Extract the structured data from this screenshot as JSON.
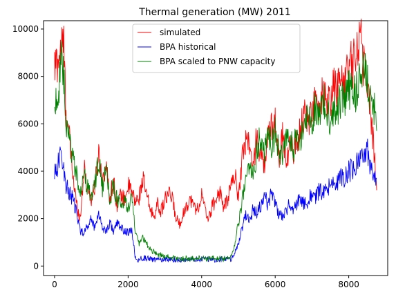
{
  "chart_data": {
    "type": "line",
    "title": "Thermal generation (MW) 2011",
    "xlabel": "",
    "ylabel": "",
    "xlim": [
      -300,
      9060
    ],
    "ylim": [
      -400,
      10350
    ],
    "x_ticks": [
      0,
      2000,
      4000,
      6000,
      8000
    ],
    "y_ticks": [
      0,
      2000,
      4000,
      6000,
      8000,
      10000
    ],
    "grid": false,
    "legend_position": "top-center",
    "series": [
      {
        "name": "simulated",
        "color": "#ff0000",
        "x": [
          0,
          100,
          200,
          250,
          300,
          400,
          500,
          600,
          700,
          800,
          900,
          1000,
          1100,
          1200,
          1300,
          1400,
          1500,
          1600,
          1700,
          1800,
          1900,
          2000,
          2100,
          2200,
          2300,
          2400,
          2500,
          2600,
          2700,
          2800,
          2900,
          3000,
          3100,
          3200,
          3300,
          3400,
          3500,
          3600,
          3700,
          3800,
          3900,
          4000,
          4100,
          4200,
          4300,
          4400,
          4500,
          4600,
          4700,
          4800,
          4900,
          5000,
          5100,
          5200,
          5300,
          5400,
          5500,
          5600,
          5700,
          5800,
          5900,
          6000,
          6100,
          6200,
          6300,
          6400,
          6500,
          6600,
          6700,
          6800,
          6900,
          7000,
          7100,
          7200,
          7300,
          7400,
          7500,
          7600,
          7700,
          7800,
          7900,
          8000,
          8100,
          8200,
          8300,
          8350,
          8400,
          8500,
          8600,
          8700,
          8760
        ],
        "y": [
          8300,
          8800,
          9200,
          9400,
          6900,
          5400,
          3800,
          2600,
          2000,
          4100,
          3300,
          2800,
          3400,
          4800,
          3600,
          4300,
          2900,
          3600,
          2600,
          3000,
          2800,
          3400,
          3100,
          2700,
          2900,
          3700,
          3000,
          2400,
          2100,
          2600,
          2300,
          2800,
          3000,
          2900,
          2000,
          1800,
          2200,
          2600,
          2800,
          2500,
          2400,
          3000,
          2300,
          2000,
          2600,
          2800,
          3200,
          2400,
          2800,
          3400,
          3900,
          2900,
          4500,
          5400,
          5200,
          4000,
          5600,
          4600,
          4300,
          5300,
          5900,
          6100,
          4600,
          5500,
          4500,
          5100,
          4900,
          5300,
          5800,
          6600,
          6100,
          6400,
          7000,
          6300,
          7400,
          6700,
          6900,
          7700,
          7400,
          8100,
          7800,
          8700,
          8400,
          9100,
          9800,
          9700,
          8600,
          7800,
          6500,
          4600,
          3200
        ]
      },
      {
        "name": "BPA historical",
        "color": "#0000ff",
        "x": [
          0,
          100,
          200,
          300,
          400,
          500,
          600,
          700,
          800,
          900,
          1000,
          1100,
          1200,
          1300,
          1400,
          1500,
          1600,
          1700,
          1800,
          1900,
          2000,
          2100,
          2200,
          2300,
          2400,
          2600,
          2800,
          3000,
          3200,
          3400,
          3600,
          3800,
          4000,
          4200,
          4400,
          4600,
          4800,
          5000,
          5100,
          5200,
          5300,
          5400,
          5500,
          5600,
          5700,
          5800,
          5900,
          6000,
          6100,
          6200,
          6300,
          6400,
          6500,
          6600,
          6700,
          6800,
          6900,
          7000,
          7100,
          7200,
          7300,
          7400,
          7500,
          7600,
          7700,
          7800,
          7900,
          8000,
          8100,
          8200,
          8300,
          8400,
          8500,
          8600,
          8700,
          8760
        ],
        "y": [
          4000,
          4300,
          4800,
          3400,
          3100,
          2800,
          2200,
          1500,
          1400,
          1700,
          2000,
          1600,
          2300,
          1600,
          1500,
          1800,
          1500,
          1800,
          1600,
          1500,
          1400,
          1500,
          300,
          250,
          350,
          300,
          250,
          300,
          280,
          250,
          220,
          300,
          280,
          300,
          250,
          300,
          280,
          900,
          1600,
          2200,
          1900,
          2400,
          2200,
          2500,
          3000,
          2600,
          3200,
          2700,
          2200,
          2000,
          2400,
          2600,
          2300,
          2700,
          2900,
          2600,
          2800,
          3000,
          2900,
          3200,
          3000,
          3300,
          3400,
          3600,
          3500,
          3800,
          3700,
          4000,
          4100,
          4300,
          4400,
          4600,
          4900,
          4200,
          3900,
          3700
        ]
      },
      {
        "name": "BPA scaled to PNW capacity",
        "color": "#008000",
        "x": [
          0,
          100,
          200,
          250,
          300,
          400,
          500,
          600,
          700,
          800,
          900,
          1000,
          1100,
          1200,
          1300,
          1400,
          1500,
          1600,
          1700,
          1800,
          1900,
          2000,
          2100,
          2200,
          2300,
          2400,
          2600,
          2800,
          3000,
          3200,
          3400,
          3600,
          3800,
          4000,
          4200,
          4400,
          4600,
          4800,
          4900,
          5000,
          5100,
          5200,
          5300,
          5400,
          5500,
          5600,
          5700,
          5800,
          5900,
          6000,
          6100,
          6200,
          6300,
          6400,
          6500,
          6600,
          6700,
          6800,
          6900,
          7000,
          7100,
          7200,
          7300,
          7400,
          7500,
          7600,
          7700,
          7800,
          7900,
          8000,
          8100,
          8200,
          8300,
          8400,
          8500,
          8600,
          8700,
          8760
        ],
        "y": [
          6800,
          7300,
          8500,
          8000,
          5800,
          5300,
          4600,
          3800,
          3200,
          3800,
          3300,
          2900,
          3500,
          4500,
          3300,
          4000,
          2700,
          3400,
          2800,
          2600,
          2700,
          2500,
          2900,
          1400,
          900,
          1200,
          700,
          500,
          400,
          350,
          300,
          320,
          300,
          350,
          300,
          320,
          300,
          400,
          900,
          1800,
          2700,
          3600,
          4200,
          3900,
          4800,
          5500,
          4600,
          5900,
          5100,
          5600,
          4800,
          4700,
          5200,
          5400,
          4900,
          5600,
          5200,
          6000,
          6400,
          6200,
          6700,
          6500,
          7000,
          6400,
          6200,
          6800,
          6600,
          7200,
          7000,
          7500,
          7200,
          7400,
          7800,
          8700,
          7900,
          7000,
          6600,
          5700
        ]
      }
    ]
  }
}
